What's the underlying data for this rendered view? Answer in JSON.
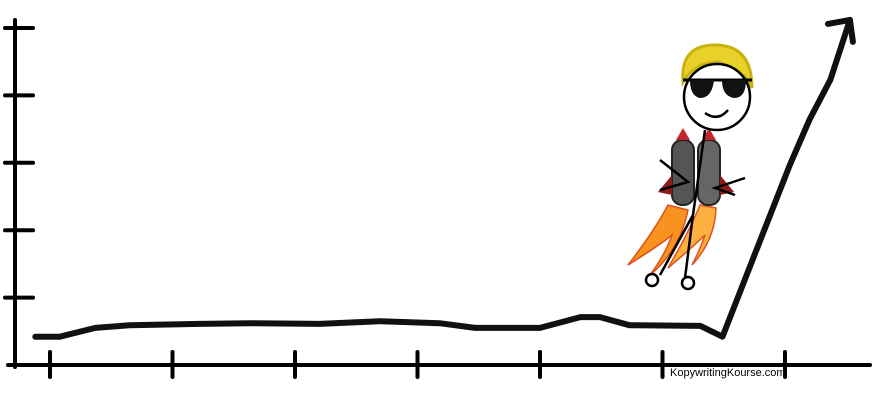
{
  "chart_data": {
    "type": "line",
    "title": "",
    "xlabel": "",
    "ylabel": "",
    "x_ticks": [
      1,
      2,
      3,
      4,
      5,
      6,
      7
    ],
    "y_ticks": [
      1,
      2,
      3,
      4,
      5
    ],
    "xlim": [
      0.7,
      7.7
    ],
    "ylim": [
      0,
      5.2
    ],
    "grid": false,
    "style": "hand-drawn",
    "line_color": "#111111",
    "ends_with_arrow": true,
    "x": [
      0.88,
      1.08,
      1.37,
      1.65,
      2.22,
      2.63,
      3.2,
      3.69,
      4.18,
      4.47,
      5.0,
      5.33,
      5.49,
      5.73,
      6.31,
      6.49,
      6.8,
      7.04,
      7.2,
      7.37,
      7.53
    ],
    "y": [
      0.42,
      0.42,
      0.55,
      0.59,
      0.61,
      0.62,
      0.61,
      0.65,
      0.62,
      0.55,
      0.55,
      0.71,
      0.71,
      0.59,
      0.58,
      0.42,
      1.86,
      2.97,
      3.64,
      4.23,
      5.12
    ]
  },
  "illustration": {
    "subject": "stick figure with sunglasses and jetpack",
    "hair_color": "#e8d22a",
    "flame_color": "#f7931e"
  },
  "watermark": "KopywritingKourse.com"
}
